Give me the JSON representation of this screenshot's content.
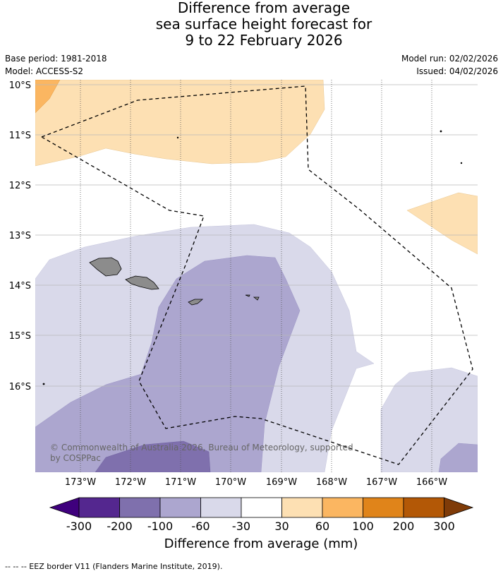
{
  "title": {
    "line1": "Difference from average",
    "line2": "sea surface height forecast for",
    "line3": "9 to 22 February 2026"
  },
  "meta": {
    "base_period": "Base period: 1981-2018",
    "model": "Model: ACCESS-S2",
    "model_run": "Model run: 02/02/2026",
    "issued": "Issued: 04/02/2026"
  },
  "map": {
    "lat_labels": [
      "10°S",
      "11°S",
      "12°S",
      "13°S",
      "14°S",
      "15°S",
      "16°S"
    ],
    "lon_labels": [
      "173°W",
      "172°W",
      "171°W",
      "170°W",
      "169°W",
      "168°W",
      "167°W",
      "166°W"
    ],
    "copyright_line1": "© Commonwealth of Australia 2026, Bureau of Meteorology, supported",
    "copyright_line2": "by COSPPac",
    "land_color": "#8c8c8c"
  },
  "colorbar": {
    "ticks": [
      "-300",
      "-200",
      "-100",
      "-60",
      "-30",
      "30",
      "60",
      "100",
      "200",
      "300"
    ],
    "colors": [
      "#3f007d",
      "#54278f",
      "#7f70ad",
      "#aca6cf",
      "#d9d9ea",
      "#ffffff",
      "#fde0b3",
      "#fbb661",
      "#e0841a",
      "#b35806",
      "#7f3b08"
    ],
    "title": "Difference from average (mm)"
  },
  "footnote": "--  --  -- EEZ border V11 (Flanders Marine Institute, 2019)."
}
